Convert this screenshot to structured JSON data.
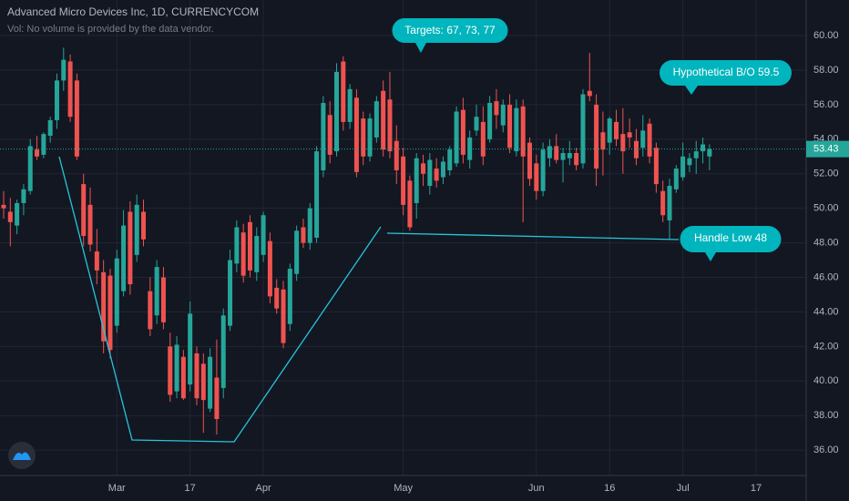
{
  "chart_data": {
    "type": "candlestick",
    "title": "Advanced Micro Devices Inc, 1D, CURRENCYCOM",
    "subtitle": "Vol: No volume is provided by the data vendor.",
    "annotations": [
      "Targets: 67, 73, 77",
      "Hypothetical B/O 59.5",
      "Handle Low  48"
    ],
    "categories": [
      null,
      null,
      null,
      null,
      null,
      null,
      null,
      null,
      null,
      null,
      null,
      null,
      null,
      null,
      null,
      null,
      null,
      "Mar",
      null,
      null,
      null,
      null,
      null,
      null,
      null,
      null,
      null,
      null,
      "17",
      null,
      null,
      null,
      null,
      null,
      null,
      null,
      null,
      null,
      null,
      "Apr",
      null,
      null,
      null,
      null,
      null,
      null,
      null,
      null,
      null,
      null,
      null,
      null,
      null,
      null,
      null,
      null,
      null,
      null,
      null,
      null,
      "May",
      null,
      null,
      null,
      null,
      null,
      null,
      null,
      null,
      null,
      null,
      null,
      null,
      null,
      null,
      null,
      null,
      null,
      null,
      null,
      "Jun",
      null,
      null,
      null,
      null,
      null,
      null,
      null,
      null,
      null,
      null,
      "16",
      null,
      null,
      null,
      null,
      null,
      null,
      null,
      null,
      null,
      null,
      "Jul",
      null,
      null,
      null,
      null,
      null,
      null,
      null,
      null,
      null,
      null,
      "17"
    ],
    "open": [
      50.2,
      49.8,
      49.0,
      50.3,
      51.0,
      53.4,
      53.1,
      54.2,
      55.1,
      57.4,
      58.5,
      57.4,
      51.4,
      50.2,
      47.5,
      46.3,
      46.1,
      43.2,
      45.2,
      49.8,
      47.3,
      49.8,
      45.2,
      43.8,
      46.0,
      42.0,
      39.4,
      41.4,
      39.8,
      41.6,
      41.0,
      38.4,
      40.2,
      39.6,
      43.2,
      46.8,
      48.6,
      49.2,
      46.3,
      47.3,
      48.1,
      45.4,
      45.3,
      43.3,
      46.2,
      48.9,
      48.0,
      48.3,
      52.2,
      55.4,
      53.3,
      58.5,
      55.0,
      56.4,
      55.2,
      53.0,
      54.1,
      56.8,
      56.3,
      53.9,
      53.0,
      51.6,
      50.3,
      52.6,
      51.3,
      52.3,
      51.8,
      52.2,
      52.6,
      55.7,
      52.8,
      54.5,
      55.0,
      54.0,
      56.2,
      54.8,
      56.0,
      53.3,
      55.9,
      53.8,
      52.6,
      51.0,
      52.9,
      53.6,
      52.8,
      52.9,
      53.2,
      52.6,
      56.8,
      56.0,
      54.4,
      53.8,
      55.0,
      54.3,
      54.4,
      53.9,
      53.5,
      54.9,
      53.5,
      51.0,
      49.3,
      51.1,
      51.8,
      52.5,
      52.9,
      53.3,
      53.0,
      null,
      null,
      null,
      null,
      null,
      null,
      null
    ],
    "high": [
      51.0,
      50.6,
      50.5,
      51.4,
      54.0,
      54.2,
      54.4,
      55.3,
      57.8,
      59.3,
      58.9,
      57.8,
      52.0,
      51.2,
      48.8,
      47.0,
      46.5,
      47.6,
      49.9,
      50.4,
      50.8,
      50.5,
      46.0,
      47.0,
      46.6,
      42.8,
      42.6,
      41.8,
      44.6,
      42.0,
      41.6,
      41.9,
      42.4,
      44.2,
      47.6,
      49.3,
      49.1,
      49.6,
      48.9,
      49.8,
      48.6,
      45.9,
      45.8,
      46.8,
      49.0,
      49.4,
      50.3,
      53.6,
      56.5,
      56.2,
      58.4,
      58.8,
      57.2,
      56.9,
      55.6,
      55.5,
      56.5,
      57.4,
      57.9,
      54.8,
      53.5,
      51.9,
      53.2,
      53.1,
      53.2,
      52.9,
      53.0,
      53.6,
      55.9,
      56.4,
      54.5,
      56.0,
      55.9,
      56.5,
      56.9,
      56.3,
      56.6,
      56.3,
      56.3,
      54.1,
      53.1,
      53.8,
      54.0,
      54.3,
      53.5,
      53.9,
      53.5,
      56.9,
      59.0,
      56.6,
      55.6,
      55.3,
      55.7,
      55.8,
      55.2,
      54.6,
      55.4,
      55.2,
      53.8,
      51.6,
      51.7,
      52.5,
      53.8,
      53.2,
      53.9,
      54.1,
      53.7,
      null,
      null,
      null,
      null,
      null,
      null,
      null
    ],
    "low": [
      49.4,
      47.8,
      48.5,
      49.6,
      50.8,
      52.8,
      52.9,
      53.8,
      54.6,
      56.8,
      55.0,
      52.8,
      47.8,
      47.5,
      45.6,
      41.6,
      41.3,
      42.8,
      44.9,
      45.0,
      46.9,
      47.8,
      42.6,
      43.3,
      43.0,
      38.8,
      39.0,
      38.9,
      39.4,
      38.6,
      37.0,
      38.2,
      36.9,
      39.0,
      42.9,
      46.3,
      45.7,
      46.0,
      45.8,
      46.9,
      44.5,
      43.9,
      41.9,
      42.9,
      45.8,
      47.7,
      47.6,
      48.0,
      51.8,
      52.6,
      53.0,
      54.5,
      54.6,
      51.8,
      52.5,
      52.7,
      53.8,
      53.0,
      52.9,
      51.4,
      49.6,
      48.7,
      49.4,
      51.3,
      50.8,
      51.2,
      51.4,
      51.9,
      52.4,
      52.6,
      52.3,
      54.2,
      52.5,
      53.8,
      54.6,
      54.4,
      53.2,
      53.0,
      49.2,
      51.3,
      50.5,
      50.7,
      52.4,
      52.6,
      51.5,
      52.5,
      52.2,
      52.3,
      56.2,
      51.3,
      51.9,
      53.1,
      53.6,
      52.0,
      53.5,
      52.5,
      53.0,
      52.6,
      50.9,
      49.2,
      48.2,
      50.9,
      51.6,
      52.1,
      52.0,
      52.6,
      52.2,
      null,
      null,
      null,
      null,
      null,
      null,
      null
    ],
    "close": [
      50.0,
      49.2,
      50.3,
      51.1,
      53.6,
      53.0,
      54.3,
      55.1,
      57.4,
      58.6,
      55.3,
      53.0,
      48.4,
      47.9,
      46.4,
      42.3,
      41.8,
      47.1,
      49.0,
      45.6,
      50.2,
      48.2,
      43.0,
      46.6,
      43.4,
      39.2,
      42.1,
      39.0,
      43.9,
      39.0,
      38.9,
      41.4,
      37.8,
      43.8,
      47.0,
      48.9,
      46.1,
      46.4,
      48.4,
      49.6,
      44.9,
      44.2,
      42.2,
      46.5,
      48.7,
      48.0,
      50.0,
      53.3,
      56.1,
      53.1,
      57.9,
      55.0,
      56.9,
      52.1,
      53.0,
      55.2,
      56.2,
      53.4,
      53.3,
      52.2,
      50.2,
      48.9,
      52.9,
      52.0,
      52.8,
      51.6,
      52.7,
      53.4,
      55.6,
      53.1,
      54.1,
      55.3,
      53.0,
      56.1,
      55.4,
      56.0,
      53.5,
      55.8,
      53.0,
      51.7,
      51.0,
      53.4,
      53.6,
      52.8,
      53.2,
      53.2,
      52.5,
      56.6,
      56.5,
      52.3,
      53.4,
      55.2,
      54.0,
      53.3,
      54.1,
      52.9,
      54.5,
      53.0,
      51.4,
      49.6,
      51.3,
      52.3,
      53.0,
      52.9,
      53.3,
      53.7,
      53.43,
      null,
      null,
      null,
      null,
      null,
      null,
      null
    ],
    "up_color": "#26a69a",
    "down_color": "#ef5350",
    "ylim": [
      34.53,
      62.06
    ],
    "yticks": [
      {
        "value": 36,
        "label": "36.00"
      },
      {
        "value": 38,
        "label": "38.00"
      },
      {
        "value": 40,
        "label": "40.00"
      },
      {
        "value": 42,
        "label": "42.00"
      },
      {
        "value": 44,
        "label": "44.00"
      },
      {
        "value": 46,
        "label": "46.00"
      },
      {
        "value": 48,
        "label": "48.00"
      },
      {
        "value": 50,
        "label": "50.00"
      },
      {
        "value": 52,
        "label": "52.00"
      },
      {
        "value": 54,
        "label": "54.00"
      },
      {
        "value": 56,
        "label": "56.00"
      },
      {
        "value": 58,
        "label": "58.00"
      },
      {
        "value": 60,
        "label": "60.00"
      }
    ],
    "grid": true
  }
}
